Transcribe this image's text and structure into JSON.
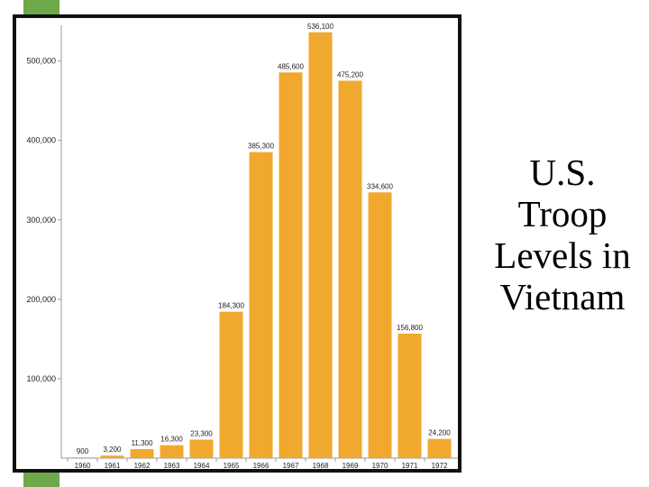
{
  "slide": {
    "title_lines": [
      "U.S.",
      "Troop",
      "Levels in",
      "Vietnam"
    ]
  },
  "colors": {
    "bar": "#f0a92e",
    "accent": "#6fa84a",
    "frame": "#111111",
    "axis": "#9a9a9a",
    "text": "#222222"
  },
  "chart_data": {
    "type": "bar",
    "categories": [
      "1960",
      "1961",
      "1962",
      "1963",
      "1964",
      "1965",
      "1966",
      "1967",
      "1968",
      "1969",
      "1970",
      "1971",
      "1972"
    ],
    "values": [
      900,
      3200,
      11300,
      16300,
      23300,
      184300,
      385300,
      485600,
      536100,
      475200,
      334600,
      156800,
      24200
    ],
    "data_labels": [
      "900",
      "3,200",
      "11,300",
      "16,300",
      "23,300",
      "184,300",
      "385,300",
      "485,600",
      "536,100",
      "475,200",
      "334,600",
      "156,800",
      "24,200"
    ],
    "y_ticks": [
      100000,
      200000,
      300000,
      400000,
      500000
    ],
    "y_tick_labels": [
      "100,000",
      "200,000",
      "300,000",
      "400,000",
      "500,000"
    ],
    "ylim": [
      0,
      545000
    ],
    "xlabel": "",
    "ylabel": "",
    "grid": false
  }
}
